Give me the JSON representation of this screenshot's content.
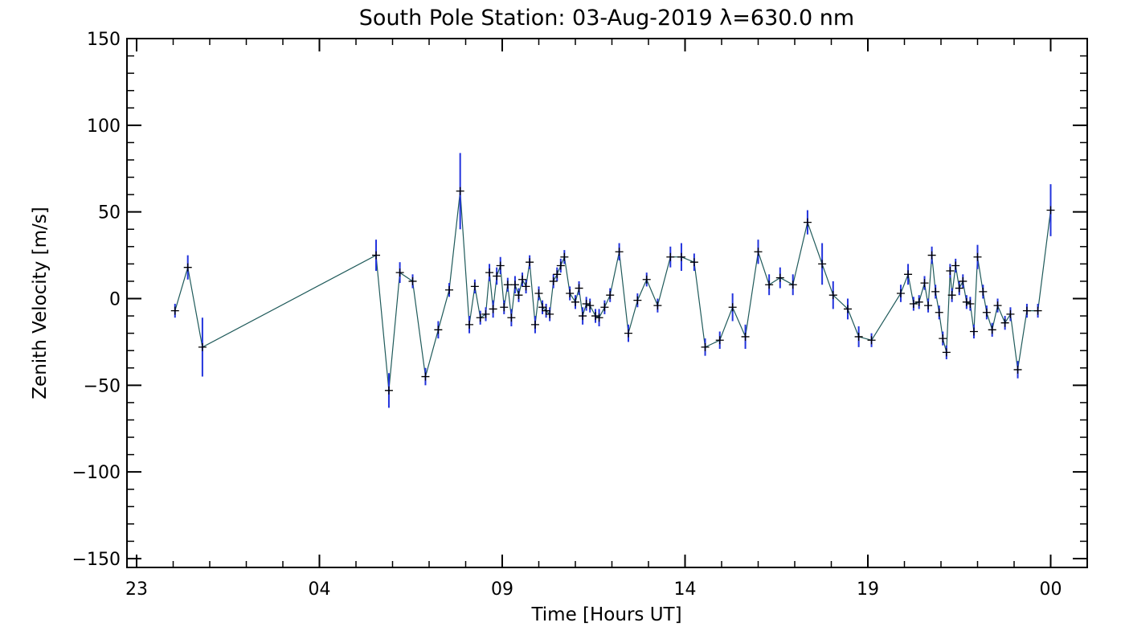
{
  "chart_data": {
    "type": "line",
    "title": "South Pole Station: 03-Aug-2019 λ=630.0 nm",
    "xlabel": "Time [Hours UT]",
    "ylabel": "Zenith Velocity [m/s]",
    "x_ticks": [
      "23",
      "04",
      "09",
      "14",
      "19",
      "00"
    ],
    "x_tick_hours_since_23": [
      0,
      5,
      10,
      15,
      20,
      25
    ],
    "ylim": [
      -150,
      150
    ],
    "y_ticks": [
      "150",
      "100",
      "50",
      "0",
      "−50",
      "−100",
      "−150"
    ],
    "y_tick_values": [
      150,
      100,
      50,
      0,
      -50,
      -100,
      -150
    ],
    "xlim_hours_since_23": [
      -0.2,
      26.0
    ],
    "series": [
      {
        "name": "Zenith Velocity",
        "line_color": "#1f5a5a",
        "errorbar_color": "#2233dd",
        "marker_color": "#000000",
        "points": [
          {
            "t": 1.05,
            "v": -7,
            "err": 4
          },
          {
            "t": 1.4,
            "v": 18,
            "err": 7
          },
          {
            "t": 1.8,
            "v": -28,
            "err": 17
          },
          {
            "t": 6.55,
            "v": 25,
            "err": 9
          },
          {
            "t": 6.9,
            "v": -53,
            "err": 10
          },
          {
            "t": 7.2,
            "v": 15,
            "err": 6
          },
          {
            "t": 7.55,
            "v": 10,
            "err": 4
          },
          {
            "t": 7.9,
            "v": -45,
            "err": 5
          },
          {
            "t": 8.25,
            "v": -18,
            "err": 5
          },
          {
            "t": 8.55,
            "v": 5,
            "err": 4
          },
          {
            "t": 8.85,
            "v": 62,
            "err": 22
          },
          {
            "t": 9.1,
            "v": -15,
            "err": 5
          },
          {
            "t": 9.25,
            "v": 7,
            "err": 4
          },
          {
            "t": 9.4,
            "v": -11,
            "err": 4
          },
          {
            "t": 9.55,
            "v": -9,
            "err": 4
          },
          {
            "t": 9.65,
            "v": 15,
            "err": 5
          },
          {
            "t": 9.75,
            "v": -6,
            "err": 5
          },
          {
            "t": 9.85,
            "v": 13,
            "err": 5
          },
          {
            "t": 9.95,
            "v": 19,
            "err": 5
          },
          {
            "t": 10.05,
            "v": -5,
            "err": 4
          },
          {
            "t": 10.15,
            "v": 8,
            "err": 4
          },
          {
            "t": 10.25,
            "v": -11,
            "err": 5
          },
          {
            "t": 10.35,
            "v": 8,
            "err": 5
          },
          {
            "t": 10.45,
            "v": 2,
            "err": 4
          },
          {
            "t": 10.55,
            "v": 11,
            "err": 4
          },
          {
            "t": 10.65,
            "v": 7,
            "err": 4
          },
          {
            "t": 10.75,
            "v": 21,
            "err": 4
          },
          {
            "t": 10.9,
            "v": -15,
            "err": 5
          },
          {
            "t": 11.0,
            "v": 3,
            "err": 4
          },
          {
            "t": 11.1,
            "v": -5,
            "err": 4
          },
          {
            "t": 11.2,
            "v": -7,
            "err": 4
          },
          {
            "t": 11.3,
            "v": -9,
            "err": 4
          },
          {
            "t": 11.4,
            "v": 10,
            "err": 4
          },
          {
            "t": 11.5,
            "v": 14,
            "err": 4
          },
          {
            "t": 11.6,
            "v": 19,
            "err": 4
          },
          {
            "t": 11.7,
            "v": 24,
            "err": 4
          },
          {
            "t": 11.85,
            "v": 3,
            "err": 4
          },
          {
            "t": 12.0,
            "v": -2,
            "err": 4
          },
          {
            "t": 12.1,
            "v": 6,
            "err": 4
          },
          {
            "t": 12.2,
            "v": -10,
            "err": 5
          },
          {
            "t": 12.3,
            "v": -3,
            "err": 4
          },
          {
            "t": 12.4,
            "v": -4,
            "err": 4
          },
          {
            "t": 12.55,
            "v": -10,
            "err": 4
          },
          {
            "t": 12.65,
            "v": -11,
            "err": 5
          },
          {
            "t": 12.8,
            "v": -5,
            "err": 4
          },
          {
            "t": 12.95,
            "v": 2,
            "err": 4
          },
          {
            "t": 13.2,
            "v": 27,
            "err": 5
          },
          {
            "t": 13.45,
            "v": -20,
            "err": 5
          },
          {
            "t": 13.7,
            "v": -1,
            "err": 4
          },
          {
            "t": 13.95,
            "v": 11,
            "err": 4
          },
          {
            "t": 14.25,
            "v": -4,
            "err": 4
          },
          {
            "t": 14.6,
            "v": 24,
            "err": 6
          },
          {
            "t": 14.9,
            "v": 24,
            "err": 8
          },
          {
            "t": 15.25,
            "v": 21,
            "err": 5
          },
          {
            "t": 15.55,
            "v": -28,
            "err": 5
          },
          {
            "t": 15.95,
            "v": -24,
            "err": 5
          },
          {
            "t": 16.3,
            "v": -5,
            "err": 8
          },
          {
            "t": 16.65,
            "v": -22,
            "err": 7
          },
          {
            "t": 17.0,
            "v": 27,
            "err": 7
          },
          {
            "t": 17.3,
            "v": 8,
            "err": 6
          },
          {
            "t": 17.6,
            "v": 12,
            "err": 6
          },
          {
            "t": 17.95,
            "v": 8,
            "err": 6
          },
          {
            "t": 18.35,
            "v": 44,
            "err": 7
          },
          {
            "t": 18.75,
            "v": 20,
            "err": 12
          },
          {
            "t": 19.05,
            "v": 2,
            "err": 8
          },
          {
            "t": 19.45,
            "v": -6,
            "err": 6
          },
          {
            "t": 19.75,
            "v": -22,
            "err": 6
          },
          {
            "t": 20.1,
            "v": -24,
            "err": 4
          },
          {
            "t": 20.9,
            "v": 3,
            "err": 5
          },
          {
            "t": 21.1,
            "v": 14,
            "err": 6
          },
          {
            "t": 21.25,
            "v": -3,
            "err": 4
          },
          {
            "t": 21.4,
            "v": -2,
            "err": 4
          },
          {
            "t": 21.55,
            "v": 9,
            "err": 4
          },
          {
            "t": 21.65,
            "v": -4,
            "err": 4
          },
          {
            "t": 21.75,
            "v": 25,
            "err": 5
          },
          {
            "t": 21.85,
            "v": 4,
            "err": 4
          },
          {
            "t": 21.95,
            "v": -8,
            "err": 4
          },
          {
            "t": 22.05,
            "v": -23,
            "err": 4
          },
          {
            "t": 22.15,
            "v": -31,
            "err": 4
          },
          {
            "t": 22.25,
            "v": 16,
            "err": 4
          },
          {
            "t": 22.3,
            "v": 2,
            "err": 4
          },
          {
            "t": 22.4,
            "v": 19,
            "err": 4
          },
          {
            "t": 22.5,
            "v": 6,
            "err": 4
          },
          {
            "t": 22.6,
            "v": 10,
            "err": 4
          },
          {
            "t": 22.7,
            "v": -2,
            "err": 4
          },
          {
            "t": 22.8,
            "v": -3,
            "err": 4
          },
          {
            "t": 22.9,
            "v": -19,
            "err": 4
          },
          {
            "t": 23.0,
            "v": 24,
            "err": 7
          },
          {
            "t": 23.15,
            "v": 4,
            "err": 4
          },
          {
            "t": 23.25,
            "v": -8,
            "err": 4
          },
          {
            "t": 23.4,
            "v": -18,
            "err": 4
          },
          {
            "t": 23.55,
            "v": -4,
            "err": 4
          },
          {
            "t": 23.75,
            "v": -14,
            "err": 4
          },
          {
            "t": 23.9,
            "v": -9,
            "err": 4
          },
          {
            "t": 24.1,
            "v": -41,
            "err": 5
          },
          {
            "t": 24.35,
            "v": -7,
            "err": 4
          },
          {
            "t": 24.65,
            "v": -7,
            "err": 4
          },
          {
            "t": 25.0,
            "v": 51,
            "err": 15
          }
        ]
      }
    ]
  }
}
